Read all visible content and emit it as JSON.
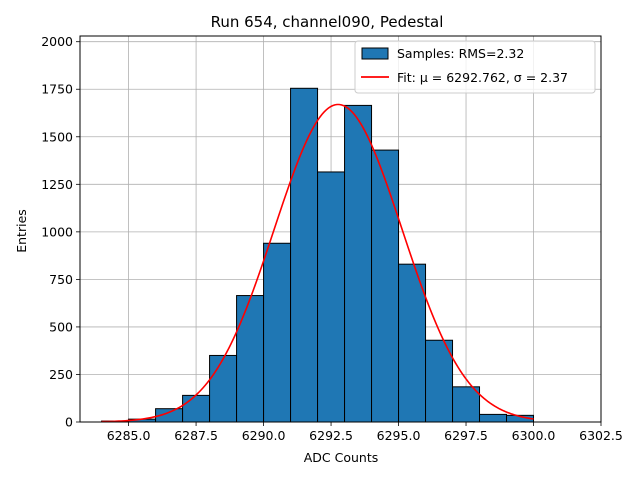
{
  "chart_data": {
    "type": "bar",
    "title": "Run 654, channel090, Pedestal",
    "xlabel": "ADC Counts",
    "ylabel": "Entries",
    "xlim": [
      6283.2,
      6302.5
    ],
    "ylim": [
      0,
      2030
    ],
    "xticks": [
      6285.0,
      6287.5,
      6290.0,
      6292.5,
      6295.0,
      6297.5,
      6300.0,
      6302.5
    ],
    "xtick_labels": [
      "6285.0",
      "6287.5",
      "6290.0",
      "6292.5",
      "6295.0",
      "6297.5",
      "6300.0",
      "6302.5"
    ],
    "yticks": [
      0,
      250,
      500,
      750,
      1000,
      1250,
      1500,
      1750,
      2000
    ],
    "ytick_labels": [
      "0",
      "250",
      "500",
      "750",
      "1000",
      "1250",
      "1500",
      "1750",
      "2000"
    ],
    "grid": true,
    "legend_position": "top-right",
    "histogram": {
      "name": "Samples: RMS=2.32",
      "color": "#1f77b4",
      "edge_color": "#000000",
      "bin_edges": [
        6284,
        6285,
        6286,
        6287,
        6288,
        6289,
        6290,
        6291,
        6292,
        6293,
        6294,
        6295,
        6296,
        6297,
        6298,
        6299,
        6300
      ],
      "values": [
        5,
        15,
        70,
        140,
        350,
        665,
        940,
        1755,
        1315,
        1665,
        1430,
        830,
        430,
        185,
        40,
        35
      ]
    },
    "fit": {
      "name": "Fit: μ = 6292.762, σ = 2.37",
      "color": "#ff0000",
      "mu": 6292.762,
      "sigma": 2.37,
      "amplitude": 1670,
      "x_range": [
        6284,
        6300
      ]
    }
  }
}
